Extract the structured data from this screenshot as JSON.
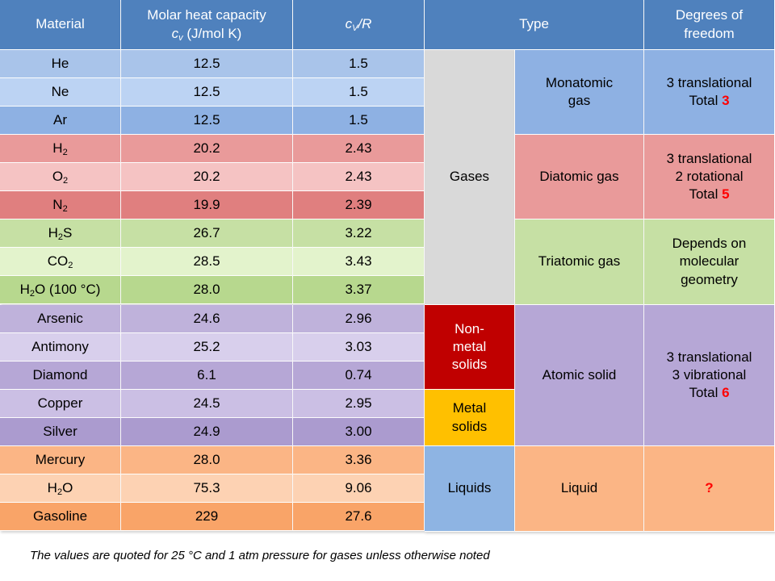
{
  "table": {
    "header": {
      "material": "Material",
      "molar_line1": "Molar heat capacity",
      "molar_line2_var": "c",
      "molar_line2_sub": "v",
      "molar_line2_unit": " (J/mol K)",
      "ratio_var": "c",
      "ratio_sub": "V",
      "ratio_rest": "/R",
      "type": "Type",
      "dof": "Degrees of\nfreedom"
    },
    "rows": [
      {
        "name": "He",
        "sub": "",
        "suffix": "",
        "cv": "12.5",
        "ratio": "1.5"
      },
      {
        "name": "Ne",
        "sub": "",
        "suffix": "",
        "cv": "12.5",
        "ratio": "1.5"
      },
      {
        "name": "Ar",
        "sub": "",
        "suffix": "",
        "cv": "12.5",
        "ratio": "1.5"
      },
      {
        "name": "H",
        "sub": "2",
        "suffix": "",
        "cv": "20.2",
        "ratio": "2.43"
      },
      {
        "name": "O",
        "sub": "2",
        "suffix": "",
        "cv": "20.2",
        "ratio": "2.43"
      },
      {
        "name": "N",
        "sub": "2",
        "suffix": "",
        "cv": "19.9",
        "ratio": "2.39"
      },
      {
        "name": "H",
        "sub": "2",
        "suffix": "S",
        "cv": "26.7",
        "ratio": "3.22"
      },
      {
        "name": "CO",
        "sub": "2",
        "suffix": "",
        "cv": "28.5",
        "ratio": "3.43"
      },
      {
        "name": "H",
        "sub": "2",
        "suffix": "O (100 °C)",
        "cv": "28.0",
        "ratio": "3.37"
      },
      {
        "name": "Arsenic",
        "sub": "",
        "suffix": "",
        "cv": "24.6",
        "ratio": "2.96"
      },
      {
        "name": "Antimony",
        "sub": "",
        "suffix": "",
        "cv": "25.2",
        "ratio": "3.03"
      },
      {
        "name": "Diamond",
        "sub": "",
        "suffix": "",
        "cv": "6.1",
        "ratio": "0.74"
      },
      {
        "name": "Copper",
        "sub": "",
        "suffix": "",
        "cv": "24.5",
        "ratio": "2.95"
      },
      {
        "name": "Silver",
        "sub": "",
        "suffix": "",
        "cv": "24.9",
        "ratio": "3.00"
      },
      {
        "name": "Mercury",
        "sub": "",
        "suffix": "",
        "cv": "28.0",
        "ratio": "3.36"
      },
      {
        "name": "H",
        "sub": "2",
        "suffix": "O",
        "cv": "75.3",
        "ratio": "9.06"
      },
      {
        "name": "Gasoline",
        "sub": "",
        "suffix": "",
        "cv": "229",
        "ratio": "27.6"
      }
    ],
    "phase_groups": [
      {
        "label": "Gases"
      },
      {
        "label": "Non-\nmetal\nsolids"
      },
      {
        "label": "Metal\nsolids"
      },
      {
        "label": "Liquids"
      }
    ],
    "type_groups": [
      {
        "label": "Monatomic\ngas"
      },
      {
        "label": "Diatomic gas"
      },
      {
        "label": "Triatomic gas"
      },
      {
        "label": "Atomic solid"
      },
      {
        "label": "Liquid"
      }
    ],
    "dof_groups": [
      {
        "text": "3 translational\nTotal ",
        "total": "3"
      },
      {
        "text": "3 translational\n2 rotational\nTotal ",
        "total": "5"
      },
      {
        "text": "Depends on\nmolecular\ngeometry",
        "total": ""
      },
      {
        "text": "3 translational\n3 vibrational\nTotal ",
        "total": "6"
      },
      {
        "text": "",
        "total": "?"
      }
    ]
  },
  "footnote": "The values are quoted for 25 °C and 1 atm pressure for gases unless otherwise noted",
  "colors": {
    "header": "#4f81bd",
    "monatomic": [
      "#a9c4ea",
      "#bcd3f3",
      "#8eb1e3"
    ],
    "diatomic": [
      "#e99a9a",
      "#f5c3c3",
      "#e07f7f"
    ],
    "triatomic": [
      "#c6e0a4",
      "#e3f3cc",
      "#b7d88e"
    ],
    "solids": [
      "#bfb2db",
      "#d8cfec",
      "#b6a7d6",
      "#cbbfe4",
      "#ab9bcf"
    ],
    "liquids": [
      "#fbb585",
      "#fdd2b3",
      "#f9a468"
    ],
    "gases_block": "#d9d9d9",
    "nonmetal_block": "#c00000",
    "metal_block": "#ffc000",
    "liquids_block": "#8eb4e3",
    "monatomic_type": "#8eb1e3",
    "diatomic_type": "#e99a9a",
    "triatomic_type": "#c6e0a4",
    "atomic_type": "#b6a7d6",
    "liquid_type": "#fbb585"
  }
}
